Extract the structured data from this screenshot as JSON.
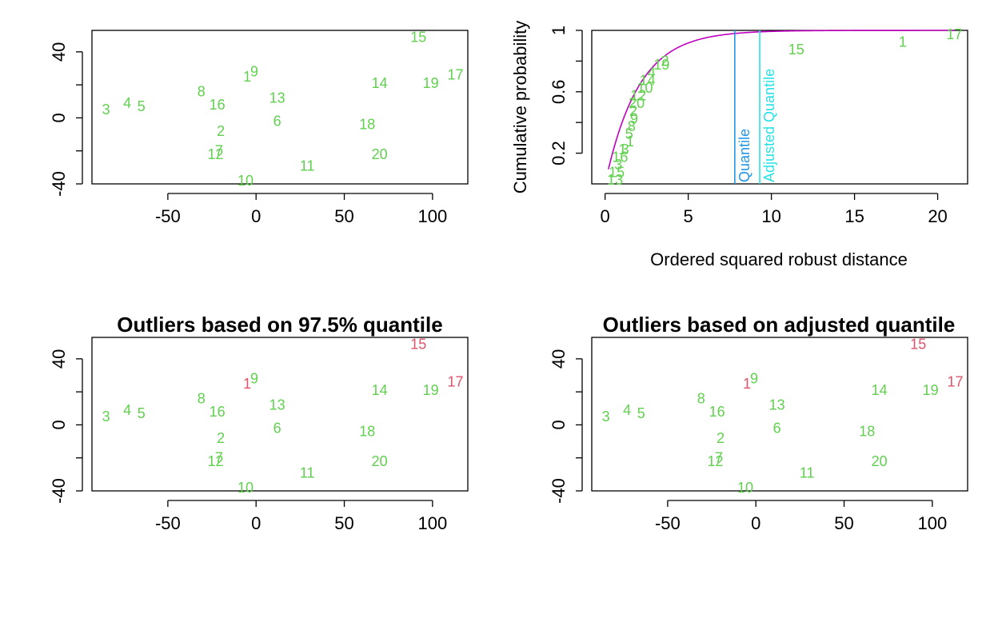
{
  "colors": {
    "inlier": "#61D04F",
    "outlier": "#DF536B",
    "curve": "#C000C0",
    "quantile_line": "#2297E6",
    "adjusted_line": "#28E2E5"
  },
  "chart_data": [
    {
      "type": "scatter",
      "title": "",
      "xlabel": "",
      "ylabel": "",
      "xlim": [
        -93,
        120
      ],
      "ylim": [
        -40,
        53
      ],
      "xticks": [
        -50,
        0,
        50,
        100
      ],
      "yticks": [
        -40,
        0,
        40
      ],
      "yticks_minor": [
        -20,
        20
      ],
      "points": [
        {
          "label": "1",
          "x": -5,
          "y": 25,
          "outlier": false
        },
        {
          "label": "2",
          "x": -20,
          "y": -8,
          "outlier": false
        },
        {
          "label": "3",
          "x": -85,
          "y": 5,
          "outlier": false
        },
        {
          "label": "4",
          "x": -73,
          "y": 9,
          "outlier": false
        },
        {
          "label": "5",
          "x": -65,
          "y": 7,
          "outlier": false
        },
        {
          "label": "6",
          "x": 12,
          "y": -2,
          "outlier": false
        },
        {
          "label": "7",
          "x": -21,
          "y": -20,
          "outlier": false
        },
        {
          "label": "8",
          "x": -31,
          "y": 16,
          "outlier": false
        },
        {
          "label": "9",
          "x": -1,
          "y": 28,
          "outlier": false
        },
        {
          "label": "10",
          "x": -6,
          "y": -38,
          "outlier": false
        },
        {
          "label": "11",
          "x": 29,
          "y": -29,
          "outlier": false
        },
        {
          "label": "12",
          "x": -23,
          "y": -22,
          "outlier": false
        },
        {
          "label": "13",
          "x": 12,
          "y": 12,
          "outlier": false
        },
        {
          "label": "14",
          "x": 70,
          "y": 21,
          "outlier": false
        },
        {
          "label": "15",
          "x": 92,
          "y": 49,
          "outlier": false
        },
        {
          "label": "16",
          "x": -22,
          "y": 8,
          "outlier": false
        },
        {
          "label": "17",
          "x": 113,
          "y": 26,
          "outlier": false
        },
        {
          "label": "18",
          "x": 63,
          "y": -4,
          "outlier": false
        },
        {
          "label": "19",
          "x": 99,
          "y": 21,
          "outlier": false
        },
        {
          "label": "20",
          "x": 70,
          "y": -22,
          "outlier": false
        }
      ]
    },
    {
      "type": "line",
      "title": "",
      "xlabel": "Ordered squared robust distance",
      "ylabel": "Cumulative probability",
      "xlim": [
        -0.8,
        21.8
      ],
      "ylim": [
        0,
        1.0
      ],
      "xticks": [
        0,
        5,
        10,
        15,
        20
      ],
      "yticks": [
        0.2,
        0.6,
        1.0
      ],
      "yticks_minor": [
        0.4,
        0.8
      ],
      "series": [
        {
          "type": "chi2_cdf_df2",
          "x_start": 0.2,
          "x_end": 21
        }
      ],
      "vlines": [
        {
          "x": 7.8,
          "label": "Quantile",
          "color_key": "quantile_line"
        },
        {
          "x": 9.3,
          "label": "Adjusted Quantile",
          "color_key": "adjusted_line"
        }
      ],
      "points": [
        {
          "label": "13",
          "x": 0.6,
          "y": 0.025
        },
        {
          "label": "15",
          "x": 0.7,
          "y": 0.075
        },
        {
          "label": "3",
          "x": 0.8,
          "y": 0.125
        },
        {
          "label": "16",
          "x": 0.9,
          "y": 0.175
        },
        {
          "label": "1",
          "x": 1.05,
          "y": 0.225
        },
        {
          "label": "3",
          "x": 1.2,
          "y": 0.225
        },
        {
          "label": "1",
          "x": 1.5,
          "y": 0.275
        },
        {
          "label": "5",
          "x": 1.45,
          "y": 0.325
        },
        {
          "label": "8",
          "x": 1.6,
          "y": 0.375
        },
        {
          "label": "9",
          "x": 1.75,
          "y": 0.425
        },
        {
          "label": "2",
          "x": 1.7,
          "y": 0.475
        },
        {
          "label": "20",
          "x": 1.9,
          "y": 0.525
        },
        {
          "label": "12",
          "x": 2.0,
          "y": 0.575
        },
        {
          "label": "10",
          "x": 2.4,
          "y": 0.625
        },
        {
          "label": "14",
          "x": 2.55,
          "y": 0.675
        },
        {
          "label": "4",
          "x": 2.8,
          "y": 0.725
        },
        {
          "label": "19",
          "x": 3.4,
          "y": 0.775
        },
        {
          "label": "2",
          "x": 3.6,
          "y": 0.8
        },
        {
          "label": "15",
          "x": 11.5,
          "y": 0.875
        },
        {
          "label": "1",
          "x": 17.9,
          "y": 0.925
        },
        {
          "label": "17",
          "x": 21.0,
          "y": 0.975
        }
      ]
    },
    {
      "type": "scatter",
      "title": "Outliers based on 97.5% quantile",
      "xlabel": "",
      "ylabel": "",
      "xlim": [
        -93,
        120
      ],
      "ylim": [
        -40,
        53
      ],
      "xticks": [
        -50,
        0,
        50,
        100
      ],
      "yticks": [
        -40,
        0,
        40
      ],
      "yticks_minor": [
        -20,
        20
      ],
      "outliers": [
        "1",
        "15",
        "17"
      ]
    },
    {
      "type": "scatter",
      "title": "Outliers based on adjusted quantile",
      "xlabel": "",
      "ylabel": "",
      "xlim": [
        -93,
        120
      ],
      "ylim": [
        -40,
        53
      ],
      "xticks": [
        -50,
        0,
        50,
        100
      ],
      "yticks": [
        -40,
        0,
        40
      ],
      "yticks_minor": [
        -20,
        20
      ],
      "outliers": [
        "1",
        "15",
        "17"
      ]
    }
  ]
}
